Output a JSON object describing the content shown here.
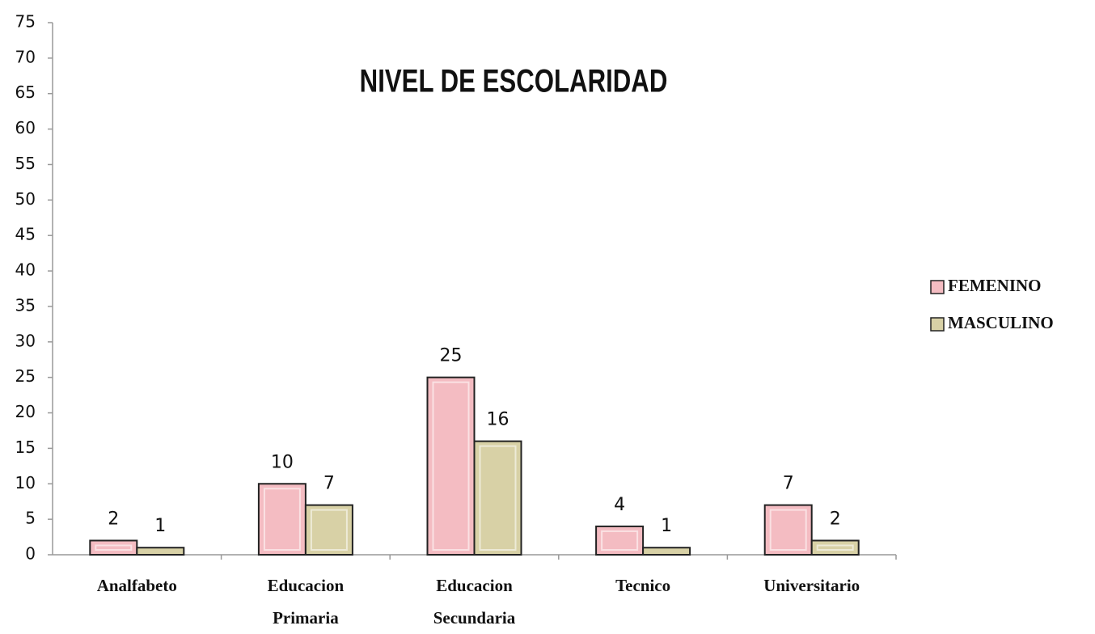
{
  "chart_data": {
    "type": "bar",
    "title": "NIVEL DE ESCOLARIDAD",
    "categories": [
      "Analfabeto",
      "Educacion Primaria",
      "Educacion Secundaria",
      "Tecnico",
      "Universitario"
    ],
    "series": [
      {
        "name": "FEMENINO",
        "color": "#f4bcc2",
        "values": [
          2,
          10,
          25,
          4,
          7
        ]
      },
      {
        "name": "MASCULINO",
        "color": "#d8d1a6",
        "values": [
          1,
          7,
          16,
          1,
          2
        ]
      }
    ],
    "ylim": [
      0,
      75
    ],
    "yticks": [
      0,
      5,
      10,
      15,
      20,
      25,
      30,
      35,
      40,
      45,
      50,
      55,
      60,
      65,
      70,
      75
    ],
    "legend": "right"
  }
}
